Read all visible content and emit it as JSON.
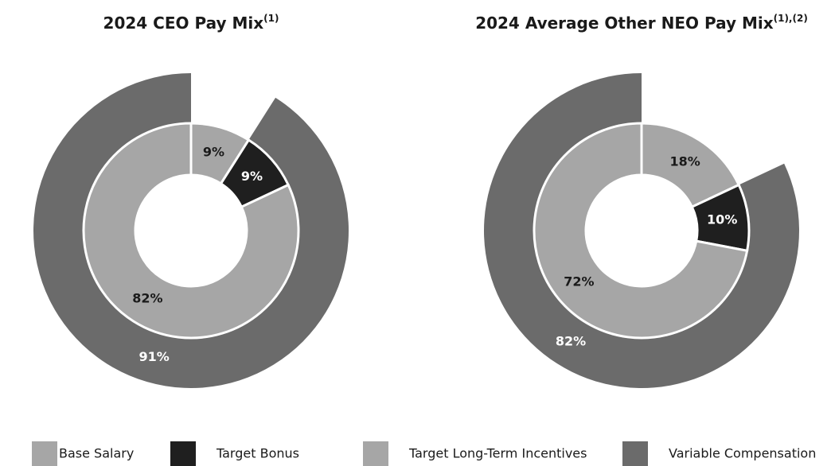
{
  "chart_data": [
    {
      "type": "donut",
      "title": "2024 CEO Pay Mix",
      "title_note": "(1)",
      "values": [
        9,
        9,
        82
      ],
      "value_labels": [
        "9%",
        "9%",
        "82%"
      ],
      "outer": {
        "value": 91,
        "value_label": "91%"
      }
    },
    {
      "type": "donut",
      "title": "2024 Average Other NEO Pay Mix",
      "title_note": "(1),(2)",
      "values": [
        18,
        10,
        72
      ],
      "value_labels": [
        "18%",
        "10%",
        "72%"
      ],
      "outer": {
        "value": 82,
        "value_label": "82%"
      }
    }
  ],
  "legend": [
    {
      "name": "Base Salary",
      "color": "#a6a6a6",
      "label_color": "#1a1a1a"
    },
    {
      "name": "Target Bonus",
      "color": "#1f1f1f",
      "label_color": "#ffffff"
    },
    {
      "name": "Target Long-Term Incentives",
      "color": "#a6a6a6",
      "label_color": "#1a1a1a"
    },
    {
      "name": "Variable Compensation",
      "color": "#6b6b6b",
      "label_color": "#ffffff"
    }
  ]
}
